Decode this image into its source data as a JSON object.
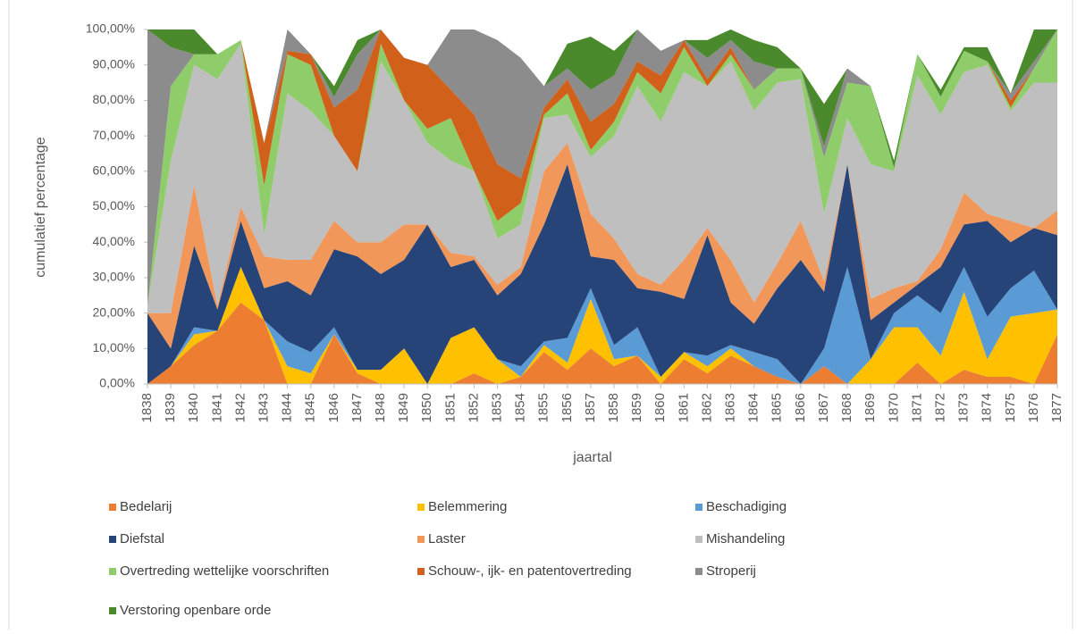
{
  "chart_data": {
    "type": "stacked_area",
    "ylabel": "cumulatief percentage",
    "xlabel": "jaartal",
    "categories": [
      "1838",
      "1839",
      "1840",
      "1841",
      "1842",
      "1843",
      "1844",
      "1845",
      "1846",
      "1847",
      "1848",
      "1849",
      "1850",
      "1851",
      "1852",
      "1853",
      "1854",
      "1855",
      "1856",
      "1857",
      "1858",
      "1859",
      "1860",
      "1861",
      "1862",
      "1863",
      "1864",
      "1865",
      "1866",
      "1867",
      "1868",
      "1869",
      "1870",
      "1871",
      "1872",
      "1873",
      "1874",
      "1875",
      "1876",
      "1877"
    ],
    "ylim": [
      0,
      100
    ],
    "yticks": [
      {
        "value": 0,
        "label": "0,00%"
      },
      {
        "value": 10,
        "label": "10,00%"
      },
      {
        "value": 20,
        "label": "20,00%"
      },
      {
        "value": 30,
        "label": "30,00%"
      },
      {
        "value": 40,
        "label": "40,00%"
      },
      {
        "value": 50,
        "label": "50,00%"
      },
      {
        "value": 60,
        "label": "60,00%"
      },
      {
        "value": 70,
        "label": "70,00%"
      },
      {
        "value": 80,
        "label": "80,00%"
      },
      {
        "value": 90,
        "label": "90,00%"
      },
      {
        "value": 100,
        "label": "100,00%"
      }
    ],
    "legend": "bottom",
    "series": [
      {
        "name": "Bedelarij",
        "color": "#ed7d31",
        "values": [
          0,
          5,
          11,
          15,
          23,
          18,
          0,
          0,
          14,
          3,
          0,
          0,
          0,
          0,
          3,
          0,
          2,
          9,
          4,
          10,
          5,
          8,
          0,
          7,
          3,
          8,
          5,
          2,
          0,
          5,
          0,
          0,
          0,
          6,
          0,
          4,
          2,
          2,
          0,
          14
        ]
      },
      {
        "name": "Belemmering",
        "color": "#ffc000",
        "values": [
          0,
          0,
          3,
          0,
          10,
          0,
          5,
          3,
          0,
          1,
          4,
          10,
          0,
          13,
          13,
          7,
          0,
          2,
          2,
          14,
          2,
          0,
          2,
          2,
          2,
          2,
          0,
          0,
          0,
          0,
          0,
          7,
          16,
          10,
          8,
          22,
          5,
          17,
          20,
          7
        ]
      },
      {
        "name": "Beschadiging",
        "color": "#5b9bd5",
        "values": [
          0,
          0,
          2,
          0,
          0,
          0,
          7,
          6,
          2,
          0,
          0,
          0,
          0,
          0,
          0,
          0,
          3,
          1,
          7,
          3,
          4,
          8,
          0,
          0,
          3,
          1,
          4,
          5,
          0,
          5,
          33,
          0,
          4,
          9,
          12,
          7,
          12,
          8,
          12,
          0
        ]
      },
      {
        "name": "Diefstal",
        "color": "#264478",
        "values": [
          20,
          5,
          23,
          6,
          13,
          9,
          17,
          16,
          22,
          32,
          27,
          25,
          45,
          20,
          19,
          18,
          26,
          33,
          49,
          9,
          24,
          11,
          24,
          15,
          34,
          12,
          8,
          20,
          35,
          16,
          29,
          11,
          3,
          3,
          13,
          12,
          27,
          13,
          12,
          21
        ]
      },
      {
        "name": "Laster",
        "color": "#f1975a",
        "values": [
          0,
          10,
          17,
          1,
          4,
          9,
          6,
          10,
          8,
          4,
          9,
          10,
          0,
          4,
          1,
          3,
          2,
          15,
          6,
          12,
          6,
          4,
          2,
          11,
          2,
          12,
          6,
          7,
          11,
          3,
          0,
          6,
          4,
          1,
          5,
          9,
          2,
          6,
          0,
          7
        ]
      },
      {
        "name": "Mishandeling",
        "color": "#bfbfbf",
        "values": [
          2,
          43,
          34,
          64,
          46,
          6,
          47,
          42,
          24,
          20,
          51,
          35,
          23,
          26,
          24,
          13,
          12,
          15,
          8,
          16,
          29,
          53,
          46,
          53,
          40,
          56,
          54,
          51,
          40,
          19,
          13,
          38,
          33,
          58,
          38,
          34,
          42,
          31,
          41,
          36
        ]
      },
      {
        "name": "Overtreding wettelijke voorschriften",
        "color": "#8fcd6a",
        "values": [
          0,
          21,
          3,
          7,
          1,
          14,
          11,
          13,
          0,
          0,
          5,
          0,
          4,
          12,
          0,
          5,
          6,
          1,
          6,
          2,
          4,
          4,
          8,
          7,
          0,
          2,
          6,
          4,
          3,
          16,
          10,
          22,
          1,
          6,
          5,
          6,
          1,
          1,
          4,
          15
        ]
      },
      {
        "name": "Schouw-, ijk- en patentovertreding",
        "color": "#d0601a",
        "values": [
          0,
          0,
          0,
          0,
          0,
          12,
          1,
          3,
          8,
          23,
          4,
          12,
          18,
          8,
          16,
          16,
          7,
          2,
          4,
          8,
          5,
          3,
          5,
          2,
          2,
          2,
          0,
          0,
          0,
          0,
          0,
          0,
          0,
          0,
          0,
          0,
          0,
          2,
          0,
          0
        ]
      },
      {
        "name": "Stroperij",
        "color": "#8c8c8c",
        "values": [
          78,
          11,
          0,
          0,
          0,
          0,
          6,
          0,
          3,
          10,
          0,
          0,
          0,
          17,
          24,
          35,
          34,
          6,
          3,
          9,
          8,
          9,
          7,
          0,
          6,
          2,
          8,
          0,
          0,
          3,
          4,
          0,
          0,
          0,
          0,
          0,
          0,
          2,
          2,
          0
        ]
      },
      {
        "name": "Verstoring openbare orde",
        "color": "#4a8a2c",
        "values": [
          0,
          5,
          7,
          0,
          0,
          0,
          0,
          0,
          3,
          4,
          0,
          0,
          0,
          0,
          0,
          0,
          0,
          0,
          7,
          15,
          7,
          0,
          0,
          0,
          5,
          3,
          6,
          6,
          0,
          12,
          0,
          0,
          2,
          0,
          2,
          1,
          4,
          0,
          9,
          0
        ]
      }
    ]
  }
}
